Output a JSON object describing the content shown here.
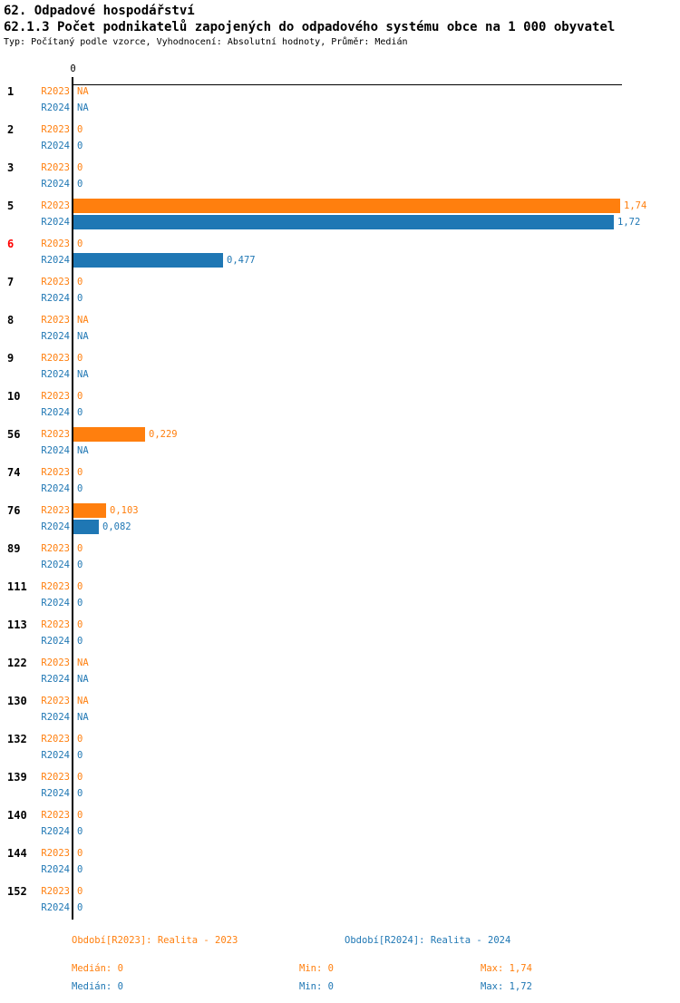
{
  "title": "62. Odpadové hospodářství",
  "subtitle": "62.1.3 Počet podnikatelů zapojených do odpadového systému obce na 1 000 obyvatel",
  "meta": "Typ: Počítaný podle vzorce, Vyhodnocení: Absolutní hodnoty, Průměr: Medián",
  "colors": {
    "r2023": "#ff7f0e",
    "r2024": "#1f77b4",
    "highlight_category": "#ff0000",
    "axis": "#000000"
  },
  "axis": {
    "tick_label": "0"
  },
  "chart_data": {
    "type": "bar",
    "orientation": "horizontal",
    "title": "62.1.3 Počet podnikatelů zapojených do odpadového systému obce na 1 000 obyvatel",
    "xlim": [
      0,
      1.75
    ],
    "grid": false,
    "na_text": "NA",
    "highlighted_category": "6",
    "categories": [
      "1",
      "2",
      "3",
      "5",
      "6",
      "7",
      "8",
      "9",
      "10",
      "56",
      "74",
      "76",
      "89",
      "111",
      "113",
      "122",
      "130",
      "132",
      "139",
      "140",
      "144",
      "152"
    ],
    "series": [
      {
        "name": "R2023",
        "color": "#ff7f0e",
        "values": [
          null,
          0,
          0,
          1.74,
          0,
          0,
          null,
          0,
          0,
          0.229,
          0,
          0.103,
          0,
          0,
          0,
          null,
          null,
          0,
          0,
          0,
          0,
          0
        ],
        "labels": [
          "NA",
          "0",
          "0",
          "1,74",
          "0",
          "0",
          "NA",
          "0",
          "0",
          "0,229",
          "0",
          "0,103",
          "0",
          "0",
          "0",
          "NA",
          "NA",
          "0",
          "0",
          "0",
          "0",
          "0"
        ]
      },
      {
        "name": "R2024",
        "color": "#1f77b4",
        "values": [
          null,
          0,
          0,
          1.72,
          0.477,
          0,
          null,
          null,
          0,
          null,
          0,
          0.082,
          0,
          0,
          0,
          null,
          null,
          0,
          0,
          0,
          0,
          0
        ],
        "labels": [
          "NA",
          "0",
          "0",
          "1,72",
          "0,477",
          "0",
          "NA",
          "NA",
          "0",
          "NA",
          "0",
          "0,082",
          "0",
          "0",
          "0",
          "NA",
          "NA",
          "0",
          "0",
          "0",
          "0",
          "0"
        ]
      }
    ]
  },
  "footer": {
    "legend_r2023": "Období[R2023]: Realita - 2023",
    "legend_r2024": "Období[R2024]: Realita - 2024",
    "r2023_median": "Medián: 0",
    "r2023_min": "Min: 0",
    "r2023_max": "Max: 1,74",
    "r2024_median": "Medián: 0",
    "r2024_min": "Min: 0",
    "r2024_max": "Max: 1,72"
  }
}
